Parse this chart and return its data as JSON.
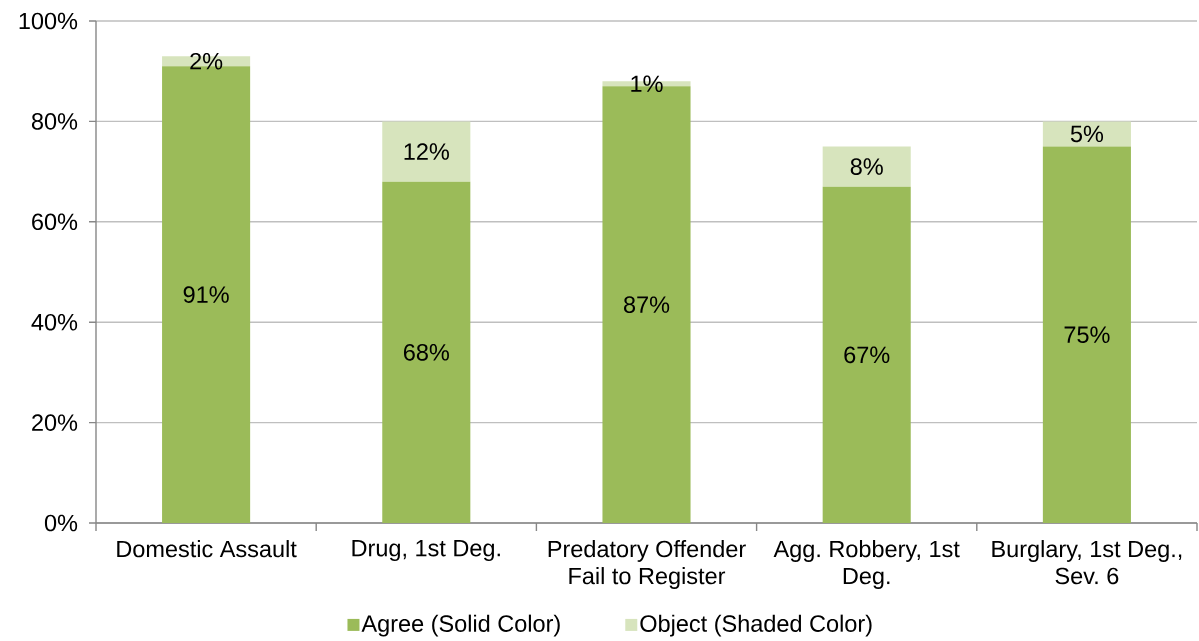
{
  "chart_data": {
    "type": "bar",
    "stacked": true,
    "categories": [
      "Domestic Assault",
      "Drug, 1st Deg.",
      "Predatory Offender Fail to Register",
      "Agg. Robbery, 1st Deg.",
      "Burglary, 1st Deg., Sev. 6"
    ],
    "series": [
      {
        "name": "Agree (Solid Color)",
        "color": "#9bbb59",
        "values": [
          91,
          68,
          87,
          67,
          75
        ],
        "value_labels": [
          "91%",
          "68%",
          "87%",
          "67%",
          "75%"
        ]
      },
      {
        "name": "Object (Shaded Color)",
        "color": "#d7e4bd",
        "values": [
          2,
          12,
          1,
          8,
          5
        ],
        "value_labels": [
          "2%",
          "12%",
          "1%",
          "8%",
          "5%"
        ]
      }
    ],
    "ylim": [
      0,
      100
    ],
    "yticks": [
      {
        "value": 0,
        "label": "0%"
      },
      {
        "value": 20,
        "label": "20%"
      },
      {
        "value": 40,
        "label": "40%"
      },
      {
        "value": 60,
        "label": "60%"
      },
      {
        "value": 80,
        "label": "80%"
      },
      {
        "value": 100,
        "label": "100%"
      }
    ],
    "grid": "y",
    "legend": "bottom"
  }
}
